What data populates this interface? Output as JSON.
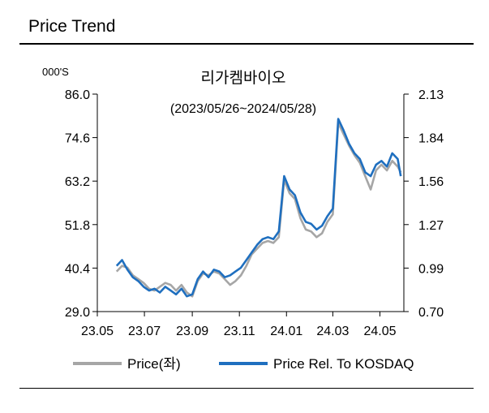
{
  "header": {
    "title": "Price Trend"
  },
  "chart_data": {
    "type": "line",
    "title": "리가켐바이오",
    "subtitle": "(2023/05/26~2024/05/28)",
    "y_unit_label": "000'S",
    "x_tick_labels": [
      "23.05",
      "23.07",
      "23.09",
      "23.11",
      "24.01",
      "24.03",
      "24.05"
    ],
    "y_left_ticks": [
      "86.0",
      "74.6",
      "63.2",
      "51.8",
      "40.4",
      "29.0"
    ],
    "y_right_ticks": [
      "2.13",
      "1.84",
      "1.56",
      "1.27",
      "0.99",
      "0.70"
    ],
    "y_left_range": [
      29.0,
      86.0
    ],
    "y_right_range": [
      0.7,
      2.13
    ],
    "x_range": [
      "2023-05-01",
      "2024-06-01"
    ],
    "colors": {
      "price": "#a6a6a6",
      "relative": "#1f6fbf"
    },
    "legend": [
      "Price(좌)",
      "Price Rel. To KOSDAQ"
    ],
    "series": [
      {
        "name": "Price(좌)",
        "axis": "left",
        "points": [
          [
            "2023-05-26",
            39.5
          ],
          [
            "2023-06-02",
            41.0
          ],
          [
            "2023-06-09",
            40.5
          ],
          [
            "2023-06-16",
            38.5
          ],
          [
            "2023-06-23",
            37.5
          ],
          [
            "2023-06-30",
            36.5
          ],
          [
            "2023-07-07",
            35.0
          ],
          [
            "2023-07-14",
            34.5
          ],
          [
            "2023-07-21",
            35.5
          ],
          [
            "2023-07-28",
            36.5
          ],
          [
            "2023-08-04",
            36.0
          ],
          [
            "2023-08-11",
            34.5
          ],
          [
            "2023-08-18",
            36.0
          ],
          [
            "2023-08-25",
            34.0
          ],
          [
            "2023-09-01",
            33.0
          ],
          [
            "2023-09-08",
            37.0
          ],
          [
            "2023-09-15",
            39.0
          ],
          [
            "2023-09-22",
            38.5
          ],
          [
            "2023-09-29",
            39.5
          ],
          [
            "2023-10-06",
            39.0
          ],
          [
            "2023-10-13",
            37.5
          ],
          [
            "2023-10-20",
            36.0
          ],
          [
            "2023-10-27",
            37.0
          ],
          [
            "2023-11-03",
            38.5
          ],
          [
            "2023-11-10",
            41.0
          ],
          [
            "2023-11-17",
            44.0
          ],
          [
            "2023-11-24",
            45.5
          ],
          [
            "2023-12-01",
            47.0
          ],
          [
            "2023-12-08",
            47.5
          ],
          [
            "2023-12-15",
            47.0
          ],
          [
            "2023-12-22",
            48.5
          ],
          [
            "2023-12-29",
            63.5
          ],
          [
            "2024-01-05",
            60.0
          ],
          [
            "2024-01-12",
            58.5
          ],
          [
            "2024-01-19",
            53.5
          ],
          [
            "2024-01-26",
            50.5
          ],
          [
            "2024-02-02",
            50.0
          ],
          [
            "2024-02-09",
            48.5
          ],
          [
            "2024-02-16",
            49.5
          ],
          [
            "2024-02-23",
            52.5
          ],
          [
            "2024-03-01",
            54.5
          ],
          [
            "2024-03-08",
            78.5
          ],
          [
            "2024-03-15",
            75.5
          ],
          [
            "2024-03-22",
            72.5
          ],
          [
            "2024-03-29",
            70.0
          ],
          [
            "2024-04-05",
            68.0
          ],
          [
            "2024-04-12",
            64.5
          ],
          [
            "2024-04-19",
            61.0
          ],
          [
            "2024-04-26",
            66.0
          ],
          [
            "2024-05-03",
            67.5
          ],
          [
            "2024-05-10",
            66.0
          ],
          [
            "2024-05-17",
            68.5
          ],
          [
            "2024-05-24",
            67.0
          ],
          [
            "2024-05-28",
            65.5
          ]
        ]
      },
      {
        "name": "Price Rel. To KOSDAQ",
        "axis": "left",
        "points": [
          [
            "2023-05-26",
            41.0
          ],
          [
            "2023-06-02",
            42.5
          ],
          [
            "2023-06-09",
            40.0
          ],
          [
            "2023-06-16",
            38.0
          ],
          [
            "2023-06-23",
            37.0
          ],
          [
            "2023-06-30",
            35.5
          ],
          [
            "2023-07-07",
            34.5
          ],
          [
            "2023-07-14",
            35.0
          ],
          [
            "2023-07-21",
            34.0
          ],
          [
            "2023-07-28",
            35.5
          ],
          [
            "2023-08-04",
            34.5
          ],
          [
            "2023-08-11",
            33.5
          ],
          [
            "2023-08-18",
            35.0
          ],
          [
            "2023-08-25",
            33.0
          ],
          [
            "2023-09-01",
            33.5
          ],
          [
            "2023-09-08",
            37.5
          ],
          [
            "2023-09-15",
            39.5
          ],
          [
            "2023-09-22",
            38.0
          ],
          [
            "2023-09-29",
            40.0
          ],
          [
            "2023-10-06",
            39.5
          ],
          [
            "2023-10-13",
            38.0
          ],
          [
            "2023-10-20",
            38.5
          ],
          [
            "2023-10-27",
            39.5
          ],
          [
            "2023-11-03",
            40.5
          ],
          [
            "2023-11-10",
            42.5
          ],
          [
            "2023-11-17",
            44.5
          ],
          [
            "2023-11-24",
            46.5
          ],
          [
            "2023-12-01",
            48.0
          ],
          [
            "2023-12-08",
            48.5
          ],
          [
            "2023-12-15",
            48.0
          ],
          [
            "2023-12-22",
            50.0
          ],
          [
            "2023-12-29",
            64.5
          ],
          [
            "2024-01-05",
            61.0
          ],
          [
            "2024-01-12",
            59.5
          ],
          [
            "2024-01-19",
            55.0
          ],
          [
            "2024-01-26",
            52.5
          ],
          [
            "2024-02-02",
            52.0
          ],
          [
            "2024-02-09",
            50.5
          ],
          [
            "2024-02-16",
            51.5
          ],
          [
            "2024-02-23",
            54.0
          ],
          [
            "2024-03-01",
            56.0
          ],
          [
            "2024-03-08",
            79.5
          ],
          [
            "2024-03-15",
            76.5
          ],
          [
            "2024-03-22",
            73.0
          ],
          [
            "2024-03-29",
            70.5
          ],
          [
            "2024-04-05",
            69.0
          ],
          [
            "2024-04-12",
            65.5
          ],
          [
            "2024-04-19",
            64.5
          ],
          [
            "2024-04-26",
            67.5
          ],
          [
            "2024-05-03",
            68.5
          ],
          [
            "2024-05-10",
            67.0
          ],
          [
            "2024-05-17",
            70.5
          ],
          [
            "2024-05-24",
            69.0
          ],
          [
            "2024-05-28",
            64.5
          ]
        ]
      }
    ]
  }
}
